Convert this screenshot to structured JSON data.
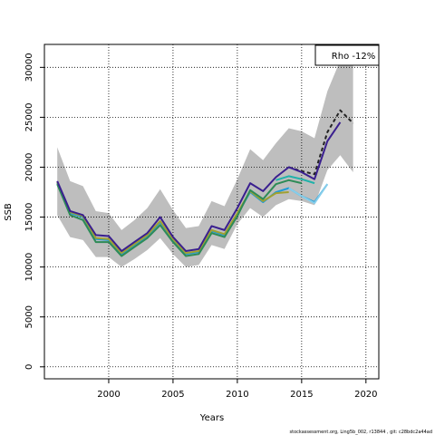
{
  "chart_data": {
    "type": "line",
    "title": "",
    "xlabel": "Years",
    "ylabel": "SSB",
    "xlim": [
      1995,
      2021
    ],
    "ylim": [
      -1200,
      32300
    ],
    "xticks": [
      2000,
      2005,
      2010,
      2015,
      2020
    ],
    "yticks": [
      0,
      5000,
      10000,
      15000,
      20000,
      25000,
      30000
    ],
    "grid": true,
    "legend": {
      "label": "Rho -12%",
      "placement": "top-right"
    },
    "footer_text": "stockassessment.org, Ling5b_002, r13844 , git: c28bdc2a44ad",
    "confidence_band": {
      "color": "#bebebe",
      "x": [
        1996,
        1997,
        1998,
        1999,
        2000,
        2001,
        2002,
        2003,
        2004,
        2005,
        2006,
        2007,
        2008,
        2009,
        2010,
        2011,
        2012,
        2013,
        2014,
        2015,
        2016,
        2017,
        2018,
        2019
      ],
      "lower": [
        15200,
        13000,
        12700,
        11000,
        11000,
        10000,
        10800,
        11700,
        12900,
        11300,
        10000,
        10200,
        12200,
        11800,
        14300,
        15900,
        15000,
        16200,
        16800,
        16600,
        16200,
        19700,
        21200,
        19500
      ],
      "upper": [
        22000,
        18600,
        18100,
        15600,
        15400,
        13700,
        14700,
        15900,
        17800,
        15700,
        13900,
        14100,
        16600,
        16100,
        18800,
        21800,
        20700,
        22400,
        23900,
        23600,
        22900,
        27600,
        30700,
        30700
      ]
    },
    "series": [
      {
        "color": "#1f9bd6",
        "style": "solid",
        "x": [
          1996,
          1997,
          1998,
          1999,
          2000,
          2001,
          2002,
          2003,
          2004,
          2005,
          2006,
          2007,
          2008,
          2009,
          2010,
          2011,
          2012,
          2013,
          2014,
          2015,
          2016,
          2017
        ],
        "values": [
          18400,
          15400,
          15000,
          12800,
          12700,
          11300,
          12200,
          13100,
          14500,
          12700,
          11300,
          11500,
          13600,
          13200,
          15300,
          17500,
          16500,
          17500,
          17900,
          17100,
          16500,
          18300
        ]
      },
      {
        "color": "#87ceeb",
        "style": "solid",
        "x": [
          2014,
          2015,
          2016,
          2017
        ],
        "values": [
          17900,
          17100,
          16400,
          18300
        ]
      },
      {
        "color": "#a0a030",
        "style": "solid",
        "x": [
          1996,
          1997,
          1998,
          1999,
          2000,
          2001,
          2002,
          2003,
          2004,
          2005,
          2006,
          2007,
          2008,
          2009,
          2010,
          2011,
          2012,
          2013,
          2014
        ],
        "values": [
          18500,
          15500,
          15100,
          12900,
          12800,
          11400,
          12300,
          13200,
          14600,
          12800,
          11400,
          11600,
          13700,
          13300,
          15400,
          17600,
          16600,
          17400,
          17500
        ]
      },
      {
        "color": "#2e8b57",
        "style": "solid",
        "x": [
          1996,
          1997,
          1998,
          1999,
          2000,
          2001,
          2002,
          2003,
          2004,
          2005,
          2006,
          2007,
          2008,
          2009,
          2010,
          2011,
          2012,
          2013,
          2014,
          2015
        ],
        "values": [
          18300,
          15200,
          14700,
          12500,
          12500,
          11100,
          12000,
          12900,
          14200,
          12500,
          11100,
          11300,
          13400,
          13000,
          15100,
          17700,
          16800,
          18300,
          18700,
          18400
        ]
      },
      {
        "color": "#20b2aa",
        "style": "solid",
        "x": [
          2013,
          2014,
          2015,
          2016
        ],
        "values": [
          18700,
          19100,
          18800,
          18400
        ]
      },
      {
        "color": "#222222",
        "style": "dashed",
        "x": [
          2014,
          2015,
          2016,
          2017,
          2018,
          2019
        ],
        "values": [
          20000,
          19600,
          19300,
          23500,
          25700,
          24400
        ]
      },
      {
        "color": "#3a1f8f",
        "style": "solid",
        "x": [
          1996,
          1997,
          1998,
          1999,
          2000,
          2001,
          2002,
          2003,
          2004,
          2005,
          2006,
          2007,
          2008,
          2009,
          2010,
          2011,
          2012,
          2013,
          2014,
          2015,
          2016,
          2017,
          2018
        ],
        "values": [
          18600,
          15600,
          15200,
          13200,
          13100,
          11600,
          12500,
          13400,
          15000,
          13000,
          11600,
          11800,
          14100,
          13700,
          15900,
          18400,
          17600,
          19000,
          20000,
          19500,
          18800,
          22600,
          24500
        ]
      }
    ]
  }
}
